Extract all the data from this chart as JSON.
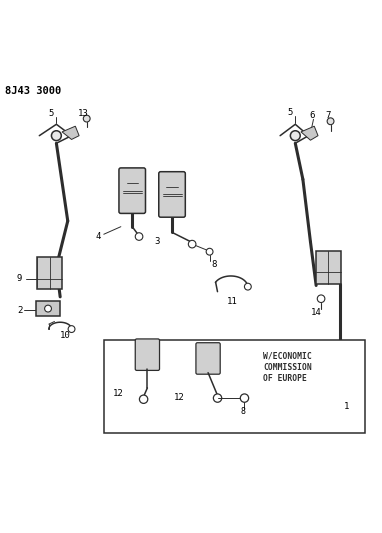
{
  "title": "8J43 3000",
  "background_color": "#ffffff",
  "line_color": "#2d2d2d",
  "label_color": "#000000",
  "fig_width": 3.82,
  "fig_height": 5.33,
  "dpi": 100,
  "box_text": "W/ECONOMIC\nCOMMISSION\nOF EUROPE"
}
